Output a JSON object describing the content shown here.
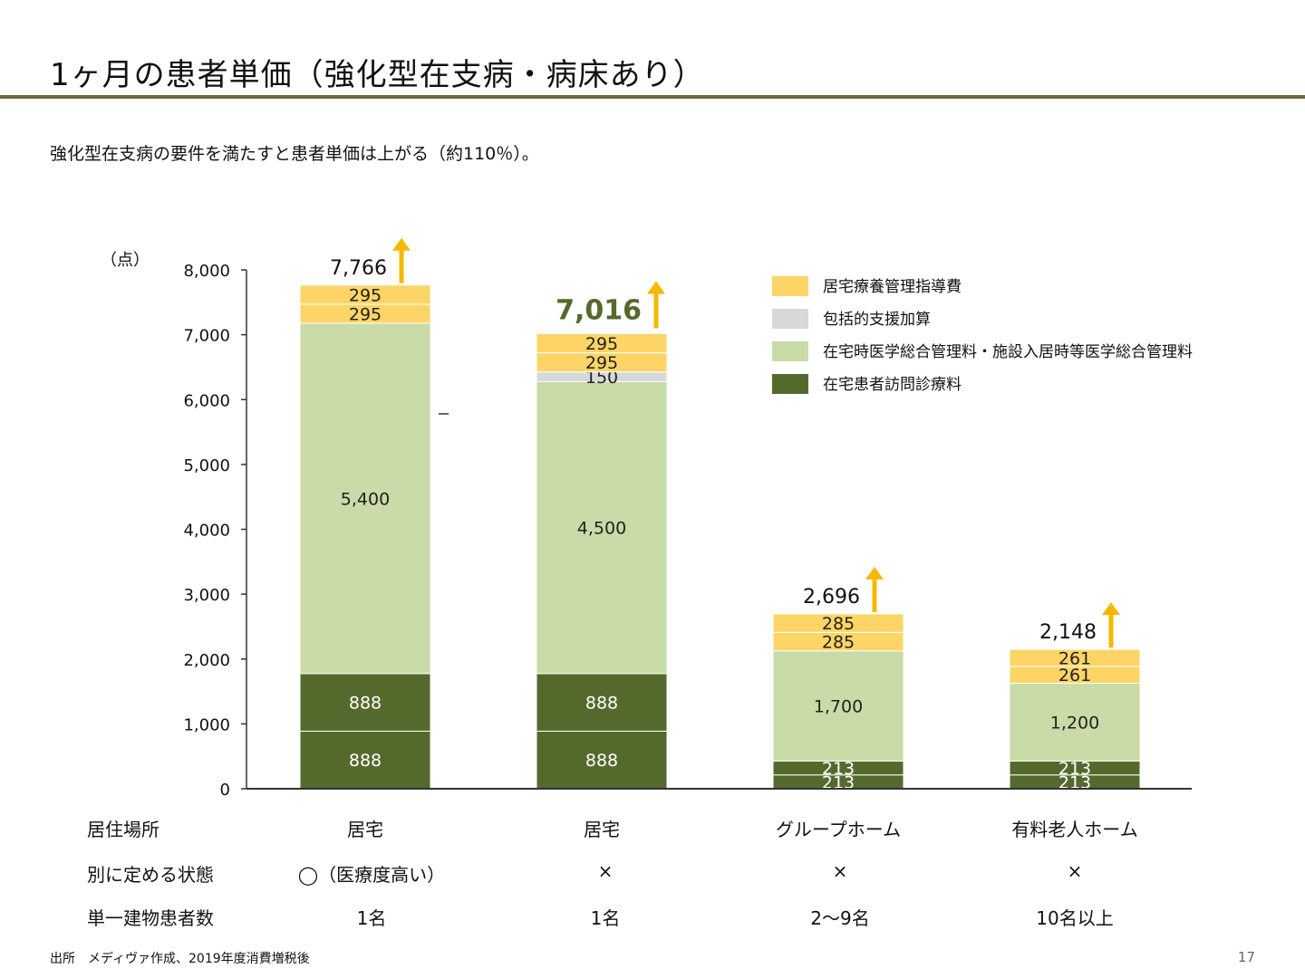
{
  "title": "1ヶ月の患者単価（強化型在支病・病床あり）",
  "subtitle": "強化型在支病の要件を満たすと患者単価は上がる（約110％）。",
  "colors": {
    "accent_rule": "#6a6b3a",
    "visit_fee": "#546a2c",
    "comprehensive_mgmt": "#c9dba6",
    "support_addition": "#d8d8d8",
    "home_care_guidance": "#fdd566",
    "arrow": "#f5b800",
    "highlight_total": "#546a2c"
  },
  "chart_data": {
    "type": "bar",
    "stacked": true,
    "unit_label": "（点）",
    "ylim": [
      0,
      8000
    ],
    "yticks": [
      "0",
      "1,000",
      "2,000",
      "3,000",
      "4,000",
      "5,000",
      "6,000",
      "7,000",
      "8,000"
    ],
    "legend": [
      {
        "key": "home_care_guidance",
        "label": "居宅療養管理指導費"
      },
      {
        "key": "support_addition",
        "label": "包括的支援加算"
      },
      {
        "key": "comprehensive_mgmt",
        "label": "在宅時医学総合管理料・施設入居時等医学総合管理料"
      },
      {
        "key": "visit_fee",
        "label": "在宅患者訪問診療料"
      }
    ],
    "bars": [
      {
        "total": 7766,
        "total_label": "7,766",
        "segments": [
          {
            "series": "visit_fee",
            "value": 888,
            "label": "888"
          },
          {
            "series": "visit_fee",
            "value": 888,
            "label": "888"
          },
          {
            "series": "comprehensive_mgmt",
            "value": 5400,
            "label": "5,400"
          },
          {
            "series": "home_care_guidance",
            "value": 295,
            "label": "295"
          },
          {
            "series": "home_care_guidance",
            "value": 295,
            "label": "295"
          }
        ]
      },
      {
        "total": 7016,
        "total_label": "7,016",
        "emphasized": true,
        "segments": [
          {
            "series": "visit_fee",
            "value": 888,
            "label": "888"
          },
          {
            "series": "visit_fee",
            "value": 888,
            "label": "888"
          },
          {
            "series": "comprehensive_mgmt",
            "value": 4500,
            "label": "4,500"
          },
          {
            "series": "support_addition",
            "value": 150,
            "label": "150"
          },
          {
            "series": "home_care_guidance",
            "value": 295,
            "label": "295"
          },
          {
            "series": "home_care_guidance",
            "value": 295,
            "label": "295"
          }
        ]
      },
      {
        "total": 2696,
        "total_label": "2,696",
        "segments": [
          {
            "series": "visit_fee",
            "value": 213,
            "label": "213"
          },
          {
            "series": "visit_fee",
            "value": 213,
            "label": "213"
          },
          {
            "series": "comprehensive_mgmt",
            "value": 1700,
            "label": "1,700"
          },
          {
            "series": "home_care_guidance",
            "value": 285,
            "label": "285"
          },
          {
            "series": "home_care_guidance",
            "value": 285,
            "label": "285"
          }
        ]
      },
      {
        "total": 2148,
        "total_label": "2,148",
        "segments": [
          {
            "series": "visit_fee",
            "value": 213,
            "label": "213"
          },
          {
            "series": "visit_fee",
            "value": 213,
            "label": "213"
          },
          {
            "series": "comprehensive_mgmt",
            "value": 1200,
            "label": "1,200"
          },
          {
            "series": "home_care_guidance",
            "value": 261,
            "label": "261"
          },
          {
            "series": "home_care_guidance",
            "value": 261,
            "label": "261"
          }
        ]
      }
    ]
  },
  "table": {
    "rows": [
      {
        "label": "居住場所",
        "cells": [
          "居宅",
          "居宅",
          "グループホーム",
          "有料老人ホーム"
        ]
      },
      {
        "label": "別に定める状態",
        "cells": [
          "◯（医療度高い）",
          "×",
          "×",
          "×"
        ]
      },
      {
        "label": "単一建物患者数",
        "cells": [
          "1名",
          "1名",
          "2〜9名",
          "10名以上"
        ]
      }
    ]
  },
  "footer": {
    "source": "出所　メディヴァ作成、2019年度消費増税後",
    "page_number": "17"
  }
}
